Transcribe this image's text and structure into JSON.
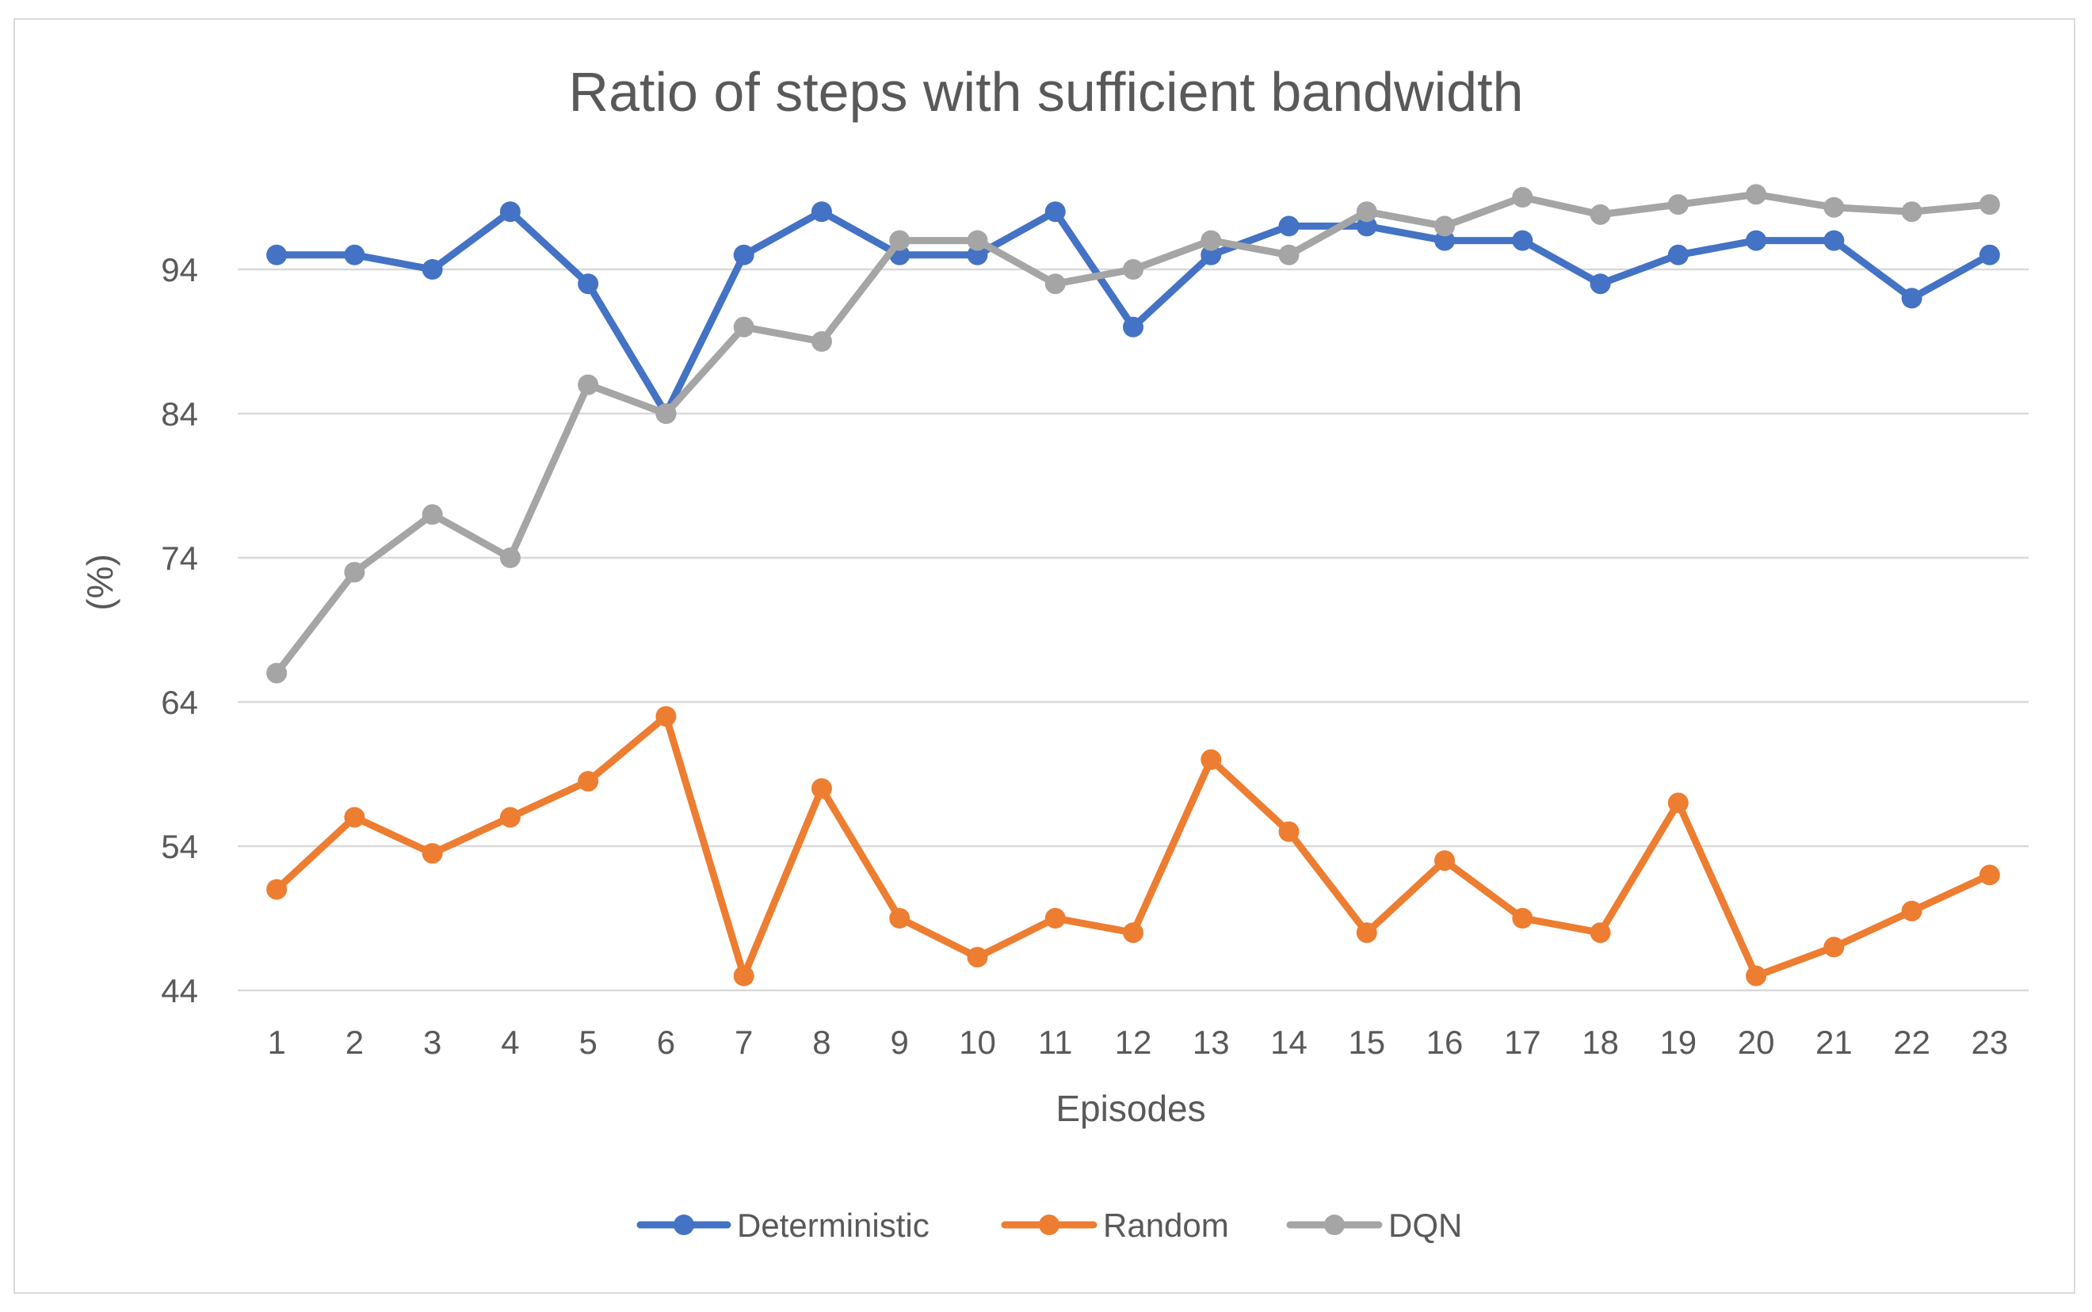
{
  "chart_data": {
    "type": "line",
    "title": "Ratio of steps with sufficient bandwidth",
    "xlabel": "Episodes",
    "ylabel": "(%)",
    "ylim": [
      44,
      104
    ],
    "yticks": [
      44,
      54,
      64,
      74,
      84,
      94
    ],
    "categories": [
      "1",
      "2",
      "3",
      "4",
      "5",
      "6",
      "7",
      "8",
      "9",
      "10",
      "11",
      "12",
      "13",
      "14",
      "15",
      "16",
      "17",
      "18",
      "19",
      "20",
      "21",
      "22",
      "23"
    ],
    "grid": true,
    "legend_position": "bottom",
    "series": [
      {
        "name": "Deterministic",
        "color": "#4472C4",
        "values": [
          95,
          95,
          94,
          98,
          93,
          84,
          95,
          98,
          95,
          95,
          98,
          90,
          95,
          97,
          97,
          96,
          96,
          93,
          95,
          96,
          96,
          92,
          95
        ]
      },
      {
        "name": "Random",
        "color": "#ED7D31",
        "values": [
          51,
          56,
          53.5,
          56,
          58.5,
          63,
          45,
          58,
          49,
          46.3,
          49,
          48,
          60,
          55,
          48,
          53,
          49,
          48,
          57,
          45,
          47,
          49.5,
          52
        ]
      },
      {
        "name": "DQN",
        "color": "#A5A5A5",
        "values": [
          66,
          73,
          77,
          74,
          86,
          84,
          90,
          89,
          96,
          96,
          93,
          94,
          96,
          95,
          98,
          97,
          99,
          97.8,
          98.5,
          99.2,
          98.3,
          98,
          98.5
        ]
      }
    ]
  }
}
